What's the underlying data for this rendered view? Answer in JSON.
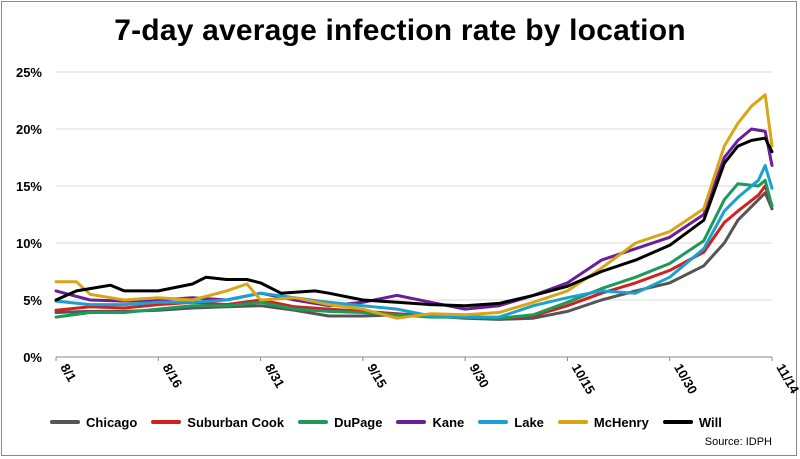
{
  "chart_data": {
    "type": "line",
    "title": "7-day average infection rate by location",
    "source": "Source: IDPH",
    "ylim": [
      0,
      25
    ],
    "yticks": [
      "0%",
      "5%",
      "10%",
      "15%",
      "20%",
      "25%"
    ],
    "ytick_values": [
      0,
      5,
      10,
      15,
      20,
      25
    ],
    "xtick_labels": [
      "8/1",
      "8/16",
      "8/31",
      "9/15",
      "9/30",
      "10/15",
      "10/30",
      "11/14"
    ],
    "xtick_days": [
      0,
      15,
      30,
      45,
      60,
      75,
      90,
      105
    ],
    "x_range": [
      0,
      105
    ],
    "grid": "horizontal",
    "legend_position": "bottom",
    "series": [
      {
        "name": "Chicago",
        "color": "#555555",
        "values": [
          [
            0,
            3.9
          ],
          [
            5,
            4.0
          ],
          [
            10,
            4.0
          ],
          [
            15,
            4.1
          ],
          [
            20,
            4.3
          ],
          [
            25,
            4.4
          ],
          [
            30,
            4.5
          ],
          [
            35,
            4.1
          ],
          [
            40,
            3.6
          ],
          [
            45,
            3.6
          ],
          [
            50,
            3.7
          ],
          [
            55,
            3.6
          ],
          [
            60,
            3.4
          ],
          [
            65,
            3.3
          ],
          [
            70,
            3.4
          ],
          [
            75,
            4.0
          ],
          [
            80,
            5.0
          ],
          [
            85,
            5.8
          ],
          [
            90,
            6.5
          ],
          [
            95,
            8.0
          ],
          [
            98,
            10.0
          ],
          [
            100,
            12.0
          ],
          [
            103,
            13.8
          ],
          [
            104,
            14.4
          ],
          [
            105,
            13.0
          ]
        ]
      },
      {
        "name": "Suburban Cook",
        "color": "#d21f1f",
        "values": [
          [
            0,
            4.1
          ],
          [
            5,
            4.4
          ],
          [
            10,
            4.3
          ],
          [
            15,
            4.6
          ],
          [
            20,
            4.8
          ],
          [
            25,
            4.6
          ],
          [
            30,
            5.0
          ],
          [
            35,
            4.4
          ],
          [
            40,
            4.2
          ],
          [
            45,
            4.0
          ],
          [
            50,
            3.8
          ],
          [
            55,
            3.6
          ],
          [
            60,
            3.6
          ],
          [
            65,
            3.4
          ],
          [
            70,
            3.6
          ],
          [
            75,
            4.5
          ],
          [
            80,
            5.6
          ],
          [
            85,
            6.5
          ],
          [
            90,
            7.6
          ],
          [
            95,
            9.2
          ],
          [
            98,
            11.8
          ],
          [
            100,
            12.8
          ],
          [
            103,
            14.2
          ],
          [
            104,
            15.0
          ],
          [
            105,
            13.3
          ]
        ]
      },
      {
        "name": "DuPage",
        "color": "#1b9a5a",
        "values": [
          [
            0,
            3.5
          ],
          [
            5,
            3.9
          ],
          [
            10,
            3.9
          ],
          [
            15,
            4.2
          ],
          [
            20,
            4.5
          ],
          [
            25,
            4.5
          ],
          [
            30,
            4.8
          ],
          [
            35,
            4.2
          ],
          [
            40,
            4.0
          ],
          [
            45,
            3.9
          ],
          [
            50,
            3.7
          ],
          [
            55,
            3.5
          ],
          [
            60,
            3.5
          ],
          [
            65,
            3.4
          ],
          [
            70,
            3.7
          ],
          [
            75,
            4.8
          ],
          [
            80,
            6.0
          ],
          [
            85,
            7.0
          ],
          [
            90,
            8.2
          ],
          [
            95,
            10.2
          ],
          [
            98,
            13.8
          ],
          [
            100,
            15.2
          ],
          [
            103,
            15.0
          ],
          [
            104,
            15.5
          ],
          [
            105,
            13.2
          ]
        ]
      },
      {
        "name": "Kane",
        "color": "#6a1e9a",
        "values": [
          [
            0,
            5.8
          ],
          [
            5,
            5.0
          ],
          [
            10,
            4.9
          ],
          [
            15,
            5.0
          ],
          [
            20,
            5.2
          ],
          [
            25,
            5.0
          ],
          [
            30,
            5.6
          ],
          [
            35,
            5.0
          ],
          [
            40,
            4.5
          ],
          [
            45,
            4.8
          ],
          [
            50,
            5.4
          ],
          [
            55,
            4.8
          ],
          [
            60,
            4.2
          ],
          [
            65,
            4.5
          ],
          [
            70,
            5.4
          ],
          [
            75,
            6.5
          ],
          [
            80,
            8.5
          ],
          [
            85,
            9.5
          ],
          [
            90,
            10.5
          ],
          [
            95,
            12.5
          ],
          [
            98,
            17.5
          ],
          [
            100,
            19.0
          ],
          [
            102,
            20.0
          ],
          [
            104,
            19.8
          ],
          [
            105,
            16.8
          ]
        ]
      },
      {
        "name": "Lake",
        "color": "#1aa1d2",
        "values": [
          [
            0,
            4.9
          ],
          [
            5,
            4.6
          ],
          [
            10,
            4.6
          ],
          [
            15,
            4.8
          ],
          [
            20,
            4.8
          ],
          [
            25,
            5.0
          ],
          [
            30,
            5.6
          ],
          [
            35,
            5.2
          ],
          [
            40,
            4.8
          ],
          [
            45,
            4.5
          ],
          [
            50,
            4.2
          ],
          [
            55,
            3.6
          ],
          [
            60,
            3.5
          ],
          [
            65,
            3.5
          ],
          [
            70,
            4.5
          ],
          [
            75,
            5.2
          ],
          [
            80,
            5.8
          ],
          [
            85,
            5.6
          ],
          [
            90,
            7.0
          ],
          [
            95,
            9.5
          ],
          [
            98,
            12.8
          ],
          [
            100,
            14.0
          ],
          [
            103,
            15.5
          ],
          [
            104,
            16.8
          ],
          [
            105,
            14.8
          ]
        ]
      },
      {
        "name": "McHenry",
        "color": "#d8a615",
        "values": [
          [
            0,
            6.6
          ],
          [
            3,
            6.6
          ],
          [
            5,
            5.5
          ],
          [
            10,
            5.0
          ],
          [
            15,
            5.2
          ],
          [
            20,
            5.0
          ],
          [
            25,
            5.8
          ],
          [
            28,
            6.4
          ],
          [
            30,
            5.0
          ],
          [
            35,
            5.2
          ],
          [
            40,
            4.6
          ],
          [
            45,
            4.2
          ],
          [
            50,
            3.4
          ],
          [
            55,
            3.8
          ],
          [
            60,
            3.7
          ],
          [
            65,
            3.9
          ],
          [
            70,
            4.8
          ],
          [
            75,
            5.8
          ],
          [
            80,
            7.8
          ],
          [
            85,
            10.0
          ],
          [
            90,
            11.0
          ],
          [
            95,
            13.0
          ],
          [
            98,
            18.5
          ],
          [
            100,
            20.5
          ],
          [
            102,
            22.0
          ],
          [
            104,
            23.0
          ],
          [
            105,
            18.5
          ]
        ]
      },
      {
        "name": "Will",
        "color": "#000000",
        "values": [
          [
            0,
            5.0
          ],
          [
            3,
            5.8
          ],
          [
            5,
            6.0
          ],
          [
            8,
            6.3
          ],
          [
            10,
            5.8
          ],
          [
            15,
            5.8
          ],
          [
            20,
            6.4
          ],
          [
            22,
            7.0
          ],
          [
            25,
            6.8
          ],
          [
            28,
            6.8
          ],
          [
            30,
            6.5
          ],
          [
            33,
            5.6
          ],
          [
            38,
            5.8
          ],
          [
            40,
            5.6
          ],
          [
            45,
            5.0
          ],
          [
            50,
            4.8
          ],
          [
            55,
            4.6
          ],
          [
            60,
            4.5
          ],
          [
            65,
            4.7
          ],
          [
            70,
            5.4
          ],
          [
            75,
            6.2
          ],
          [
            80,
            7.5
          ],
          [
            85,
            8.5
          ],
          [
            90,
            9.8
          ],
          [
            95,
            12.0
          ],
          [
            98,
            17.0
          ],
          [
            100,
            18.5
          ],
          [
            102,
            19.0
          ],
          [
            104,
            19.2
          ],
          [
            105,
            18.0
          ]
        ]
      }
    ]
  }
}
